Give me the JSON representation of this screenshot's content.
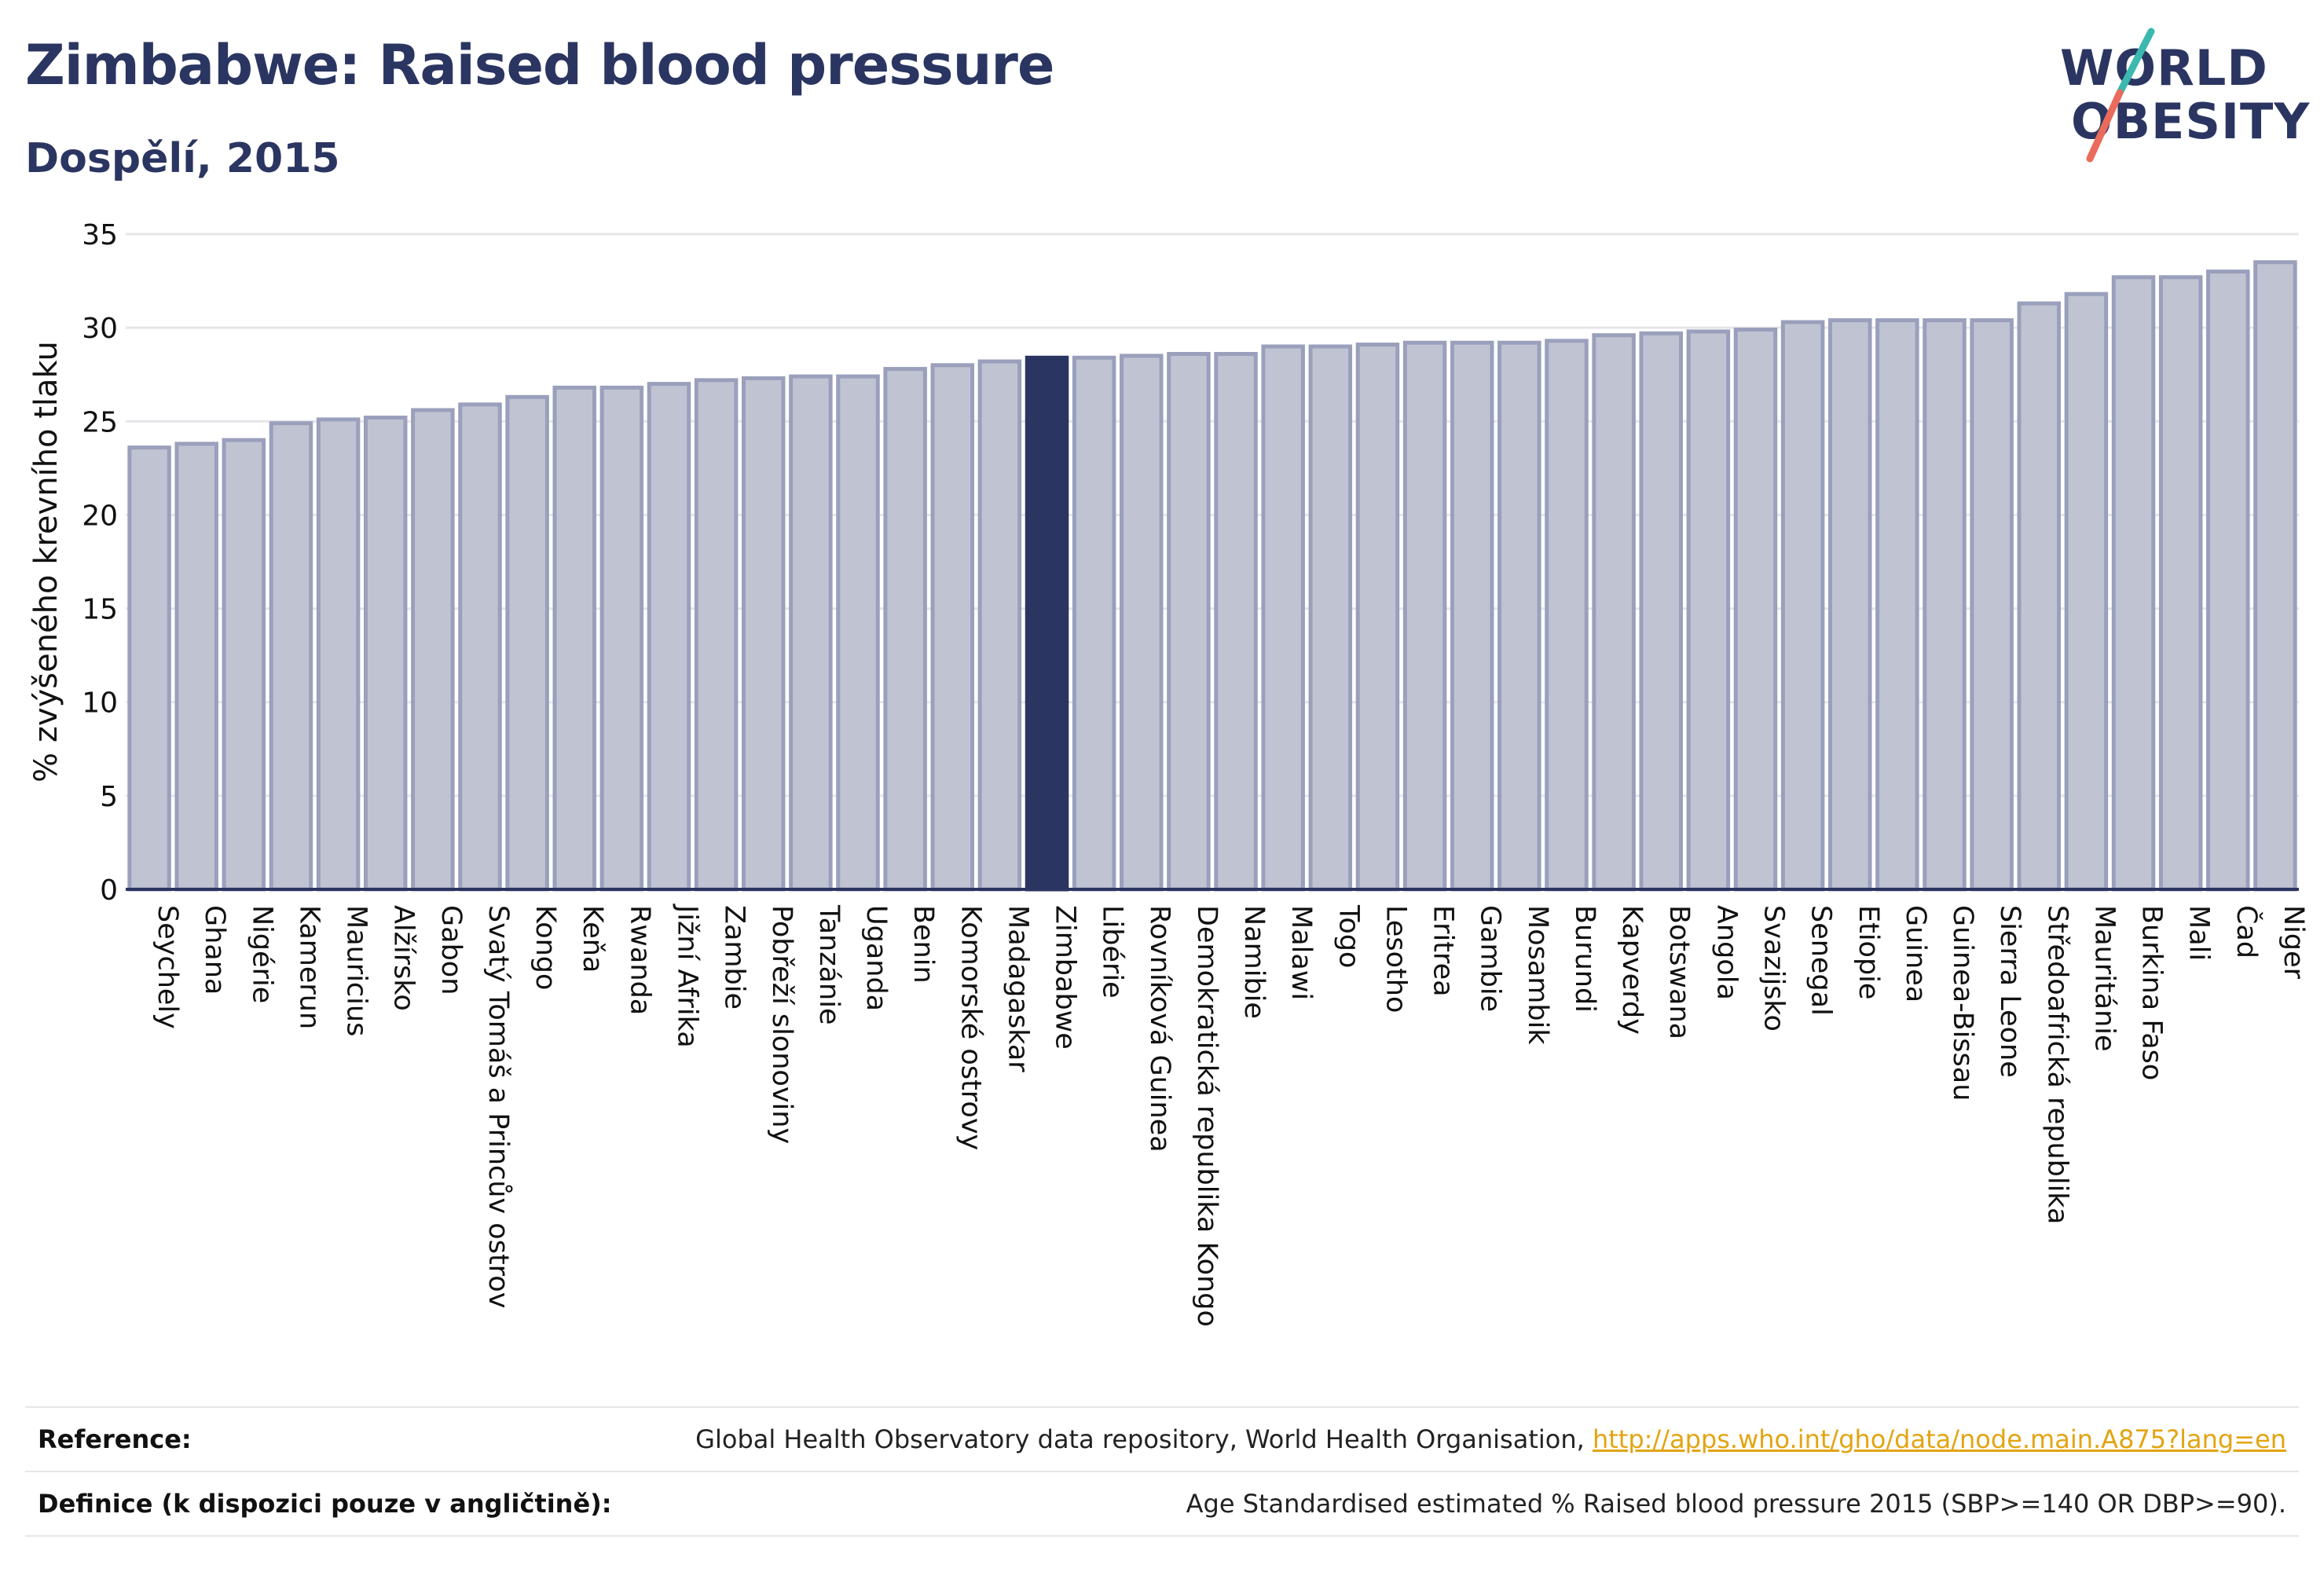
{
  "header": {
    "title": "Zimbabwe: Raised blood pressure",
    "subtitle": "Dospělí, 2015"
  },
  "logo": {
    "line1": "WORLD",
    "line2": "OBESITY",
    "colors": {
      "text": "#2b3561",
      "slash_top": "#3bb8b0",
      "slash_bottom": "#ea6b5b"
    }
  },
  "colors": {
    "bar_fill": "#c0c3d2",
    "bar_stroke": "#9aa0bb",
    "highlight": "#2b3561",
    "grid": "#e6e6ea",
    "axis": "#2b3561"
  },
  "chart_data": {
    "type": "bar",
    "title": "Zimbabwe: Raised blood pressure",
    "subtitle": "Dospělí, 2015",
    "xlabel": "",
    "ylabel": "% zvýšeného krevního tlaku",
    "ylim": [
      0,
      35
    ],
    "yticks": [
      0,
      5,
      10,
      15,
      20,
      25,
      30,
      35
    ],
    "grid": true,
    "highlight": "Zimbabwe",
    "categories": [
      "Seychely",
      "Ghana",
      "Nigérie",
      "Kamerun",
      "Mauricius",
      "Alžírsko",
      "Gabon",
      "Svatý Tomáš a Princův ostrov",
      "Kongo",
      "Keňa",
      "Rwanda",
      "Jižní Afrika",
      "Zambie",
      "Pobřeží slonoviny",
      "Tanzánie",
      "Uganda",
      "Benin",
      "Komorské ostrovy",
      "Madagaskar",
      "Zimbabwe",
      "Libérie",
      "Rovníková Guinea",
      "Demokratická republika Kongo",
      "Namibie",
      "Malawi",
      "Togo",
      "Lesotho",
      "Eritrea",
      "Gambie",
      "Mosambik",
      "Burundi",
      "Kapverdy",
      "Botswana",
      "Angola",
      "Svazijsko",
      "Senegal",
      "Etiopie",
      "Guinea",
      "Guinea-Bissau",
      "Sierra Leone",
      "Středoafrická republika",
      "Mauritánie",
      "Burkina Faso",
      "Mali",
      "Čad",
      "Niger"
    ],
    "values": [
      23.6,
      23.8,
      24.0,
      24.9,
      25.1,
      25.2,
      25.6,
      25.9,
      26.3,
      26.8,
      26.8,
      27.0,
      27.2,
      27.3,
      27.4,
      27.4,
      27.8,
      28.0,
      28.2,
      28.4,
      28.4,
      28.5,
      28.6,
      28.6,
      29.0,
      29.0,
      29.1,
      29.2,
      29.2,
      29.2,
      29.3,
      29.6,
      29.7,
      29.8,
      29.9,
      30.3,
      30.4,
      30.4,
      30.4,
      30.4,
      31.3,
      31.8,
      32.7,
      32.7,
      33.0,
      33.5
    ]
  },
  "footer": {
    "reference_label": "Reference:",
    "reference_text": "Global Health Observatory data repository, World Health Organisation,",
    "reference_link": "http://apps.who.int/gho/data/node.main.A875?lang=en",
    "definition_label": "Definice (k dispozici pouze v angličtině):",
    "definition_text": "Age Standardised estimated % Raised blood pressure 2015 (SBP>=140 OR DBP>=90)."
  }
}
